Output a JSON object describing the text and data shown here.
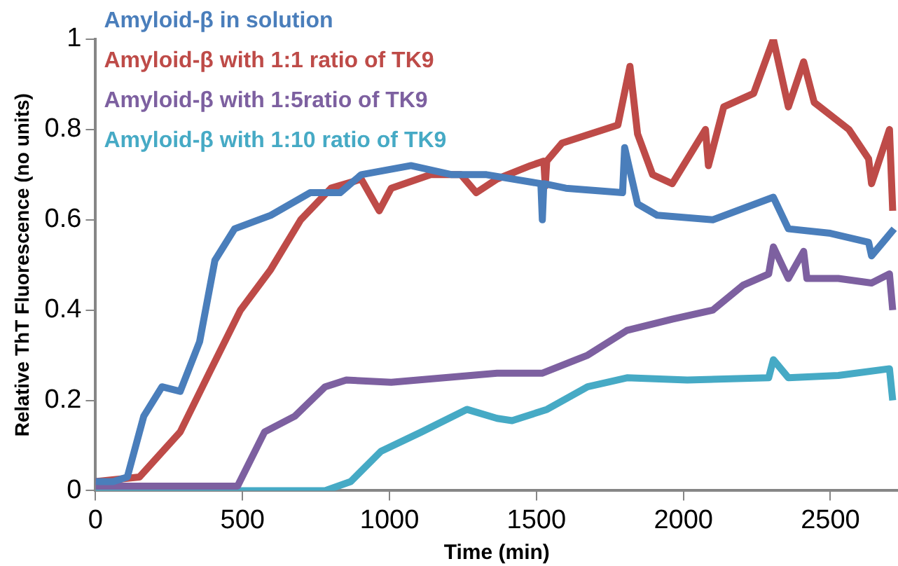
{
  "chart_data": {
    "type": "line",
    "xlabel": "Time (min)",
    "ylabel": "Relative ThT Fluorescence (no units)",
    "xlim": [
      0,
      2730
    ],
    "xticks": [
      0,
      500,
      1000,
      1500,
      2000,
      2500
    ],
    "ylim": [
      0,
      1
    ],
    "yticks": [
      0,
      0.2,
      0.4,
      0.6,
      0.8,
      1
    ],
    "legend": "top left",
    "series": [
      {
        "name": "Amyloid-β in solution",
        "color": "#4a7ebb",
        "x": [
          0,
          60,
          108,
          164,
          226,
          288,
          354,
          406,
          473,
          596,
          730,
          832,
          904,
          1073,
          1212,
          1330,
          1515,
          1520,
          1525,
          1600,
          1793,
          1800,
          1844,
          1911,
          2100,
          2306,
          2357,
          2500,
          2630,
          2640,
          2717
        ],
        "values": [
          0.02,
          0.02,
          0.03,
          0.165,
          0.23,
          0.22,
          0.33,
          0.51,
          0.58,
          0.61,
          0.66,
          0.66,
          0.7,
          0.72,
          0.7,
          0.7,
          0.68,
          0.6,
          0.68,
          0.67,
          0.66,
          0.76,
          0.635,
          0.61,
          0.6,
          0.65,
          0.58,
          0.57,
          0.55,
          0.52,
          0.58
        ]
      },
      {
        "name": "Amyloid-β with 1:1 ratio of TK9",
        "color": "#be4b48",
        "x": [
          0,
          149,
          288,
          390,
          493,
          596,
          698,
          801,
          904,
          965,
          1006,
          1140,
          1243,
          1295,
          1365,
          1480,
          1525,
          1530,
          1535,
          1587,
          1777,
          1818,
          1844,
          1895,
          1962,
          2075,
          2085,
          2137,
          2239,
          2306,
          2357,
          2409,
          2445,
          2563,
          2630,
          2640,
          2701,
          2712
        ],
        "values": [
          0.02,
          0.03,
          0.13,
          0.265,
          0.4,
          0.49,
          0.6,
          0.67,
          0.69,
          0.62,
          0.67,
          0.7,
          0.7,
          0.66,
          0.69,
          0.72,
          0.73,
          0.675,
          0.73,
          0.77,
          0.81,
          0.94,
          0.79,
          0.7,
          0.68,
          0.8,
          0.72,
          0.85,
          0.88,
          1.0,
          0.85,
          0.95,
          0.86,
          0.8,
          0.735,
          0.68,
          0.8,
          0.62
        ]
      },
      {
        "name": "Amyloid-β with 1:5ratio of TK9",
        "color": "#7d60a0",
        "x": [
          0,
          483,
          575,
          678,
          781,
          853,
          1006,
          1366,
          1519,
          1674,
          1808,
          1962,
          2100,
          2203,
          2290,
          2306,
          2357,
          2409,
          2420,
          2527,
          2640,
          2701,
          2712
        ],
        "values": [
          0.01,
          0.01,
          0.13,
          0.165,
          0.23,
          0.245,
          0.24,
          0.26,
          0.26,
          0.3,
          0.355,
          0.38,
          0.4,
          0.455,
          0.48,
          0.54,
          0.47,
          0.53,
          0.47,
          0.47,
          0.46,
          0.48,
          0.4
        ]
      },
      {
        "name": "Amyloid-β with 1:10 ratio of TK9",
        "color": "#46aac5",
        "x": [
          0,
          781,
          868,
          971,
          1109,
          1263,
          1366,
          1417,
          1536,
          1674,
          1808,
          2013,
          2290,
          2306,
          2357,
          2527,
          2701,
          2712
        ],
        "values": [
          0,
          0,
          0.02,
          0.087,
          0.13,
          0.18,
          0.16,
          0.155,
          0.18,
          0.23,
          0.25,
          0.245,
          0.25,
          0.29,
          0.25,
          0.255,
          0.27,
          0.2
        ]
      }
    ]
  }
}
